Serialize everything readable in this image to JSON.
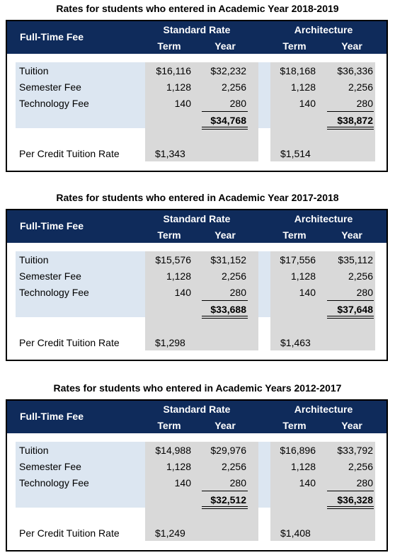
{
  "sections": [
    {
      "title": "Rates for students who entered in Academic Year 2018-2019",
      "header": {
        "fee": "Full-Time Fee",
        "groups": [
          "Standard Rate",
          "Architecture"
        ],
        "columns": [
          "Term",
          "Year",
          "Term",
          "Year"
        ]
      },
      "rows": [
        {
          "label": "Tuition",
          "values": [
            "$16,116",
            "$32,232",
            "$18,168",
            "$36,336"
          ]
        },
        {
          "label": "Semester Fee",
          "values": [
            "1,128",
            "2,256",
            "1,128",
            "2,256"
          ]
        },
        {
          "label": "Technology Fee",
          "values": [
            "140",
            "280",
            "140",
            "280"
          ]
        }
      ],
      "totals": [
        "$34,768",
        "$38,872"
      ],
      "per_credit": {
        "label": "Per Credit Tuition Rate",
        "values": [
          "$1,343",
          "$1,514"
        ]
      }
    },
    {
      "title": "Rates for students who entered in Academic Year 2017-2018",
      "header": {
        "fee": "Full-Time Fee",
        "groups": [
          "Standard Rate",
          "Architecture"
        ],
        "columns": [
          "Term",
          "Year",
          "Term",
          "Year"
        ]
      },
      "rows": [
        {
          "label": "Tuition",
          "values": [
            "$15,576",
            "$31,152",
            "$17,556",
            "$35,112"
          ]
        },
        {
          "label": "Semester Fee",
          "values": [
            "1,128",
            "2,256",
            "1,128",
            "2,256"
          ]
        },
        {
          "label": "Technology Fee",
          "values": [
            "140",
            "280",
            "140",
            "280"
          ]
        }
      ],
      "totals": [
        "$33,688",
        "$37,648"
      ],
      "per_credit": {
        "label": "Per Credit Tuition Rate",
        "values": [
          "$1,298",
          "$1,463"
        ]
      }
    },
    {
      "title": "Rates for students who entered in Academic Years 2012-2017",
      "header": {
        "fee": "Full-Time Fee",
        "groups": [
          "Standard Rate",
          "Architecture"
        ],
        "columns": [
          "Term",
          "Year",
          "Term",
          "Year"
        ]
      },
      "rows": [
        {
          "label": "Tuition",
          "values": [
            "$14,988",
            "$29,976",
            "$16,896",
            "$33,792"
          ]
        },
        {
          "label": "Semester Fee",
          "values": [
            "1,128",
            "2,256",
            "1,128",
            "2,256"
          ]
        },
        {
          "label": "Technology Fee",
          "values": [
            "140",
            "280",
            "140",
            "280"
          ]
        }
      ],
      "totals": [
        "$32,512",
        "$36,328"
      ],
      "per_credit": {
        "label": "Per Credit Tuition Rate",
        "values": [
          "$1,249",
          "$1,408"
        ]
      }
    }
  ]
}
